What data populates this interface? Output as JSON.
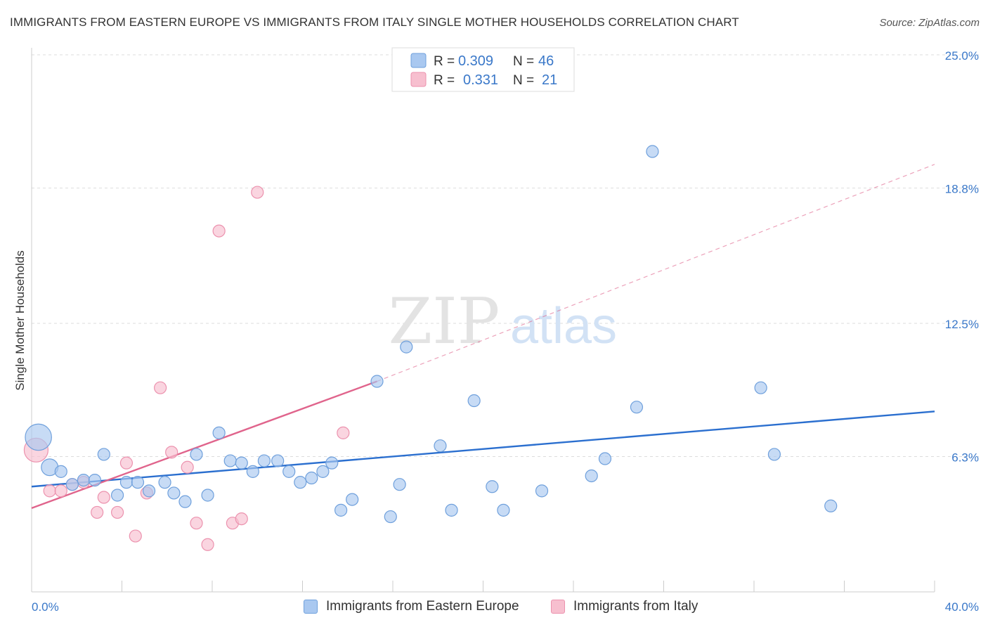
{
  "title": "IMMIGRANTS FROM EASTERN EUROPE VS IMMIGRANTS FROM ITALY SINGLE MOTHER HOUSEHOLDS CORRELATION CHART",
  "source": "Source: ZipAtlas.com",
  "watermark": {
    "zip": "ZIP",
    "atlas": "atlas"
  },
  "colors": {
    "blue_fill": "#a9c8f0",
    "blue_stroke": "#6fa0dc",
    "blue_line": "#2b6fcf",
    "pink_fill": "#f7bfcf",
    "pink_stroke": "#ec92ae",
    "pink_line": "#e0648c",
    "tick_text": "#3a78c9",
    "grid": "#dddddd"
  },
  "legend_top": [
    {
      "r_label": "R =",
      "r_value": "0.309",
      "n_label": "N =",
      "n_value": "46"
    },
    {
      "r_label": "R =",
      "r_value": "0.331",
      "n_label": "N =",
      "n_value": "21"
    }
  ],
  "chart_data": {
    "type": "scatter",
    "title": "IMMIGRANTS FROM EASTERN EUROPE VS IMMIGRANTS FROM ITALY SINGLE MOTHER HOUSEHOLDS CORRELATION CHART",
    "xlabel": "",
    "ylabel": "Single Mother Households",
    "xlim": [
      0,
      40
    ],
    "ylim": [
      0,
      25
    ],
    "x_tick_labels": [
      "0.0%",
      "40.0%"
    ],
    "y_ticks": [
      6.3,
      12.5,
      18.8,
      25.0
    ],
    "y_tick_labels": [
      "6.3%",
      "12.5%",
      "18.8%",
      "25.0%"
    ],
    "grid": "horizontal dashed",
    "legend_position": "top-center",
    "series": [
      {
        "name": "Immigrants from Eastern Europe",
        "color": "#a9c8f0",
        "trend": {
          "x": [
            0,
            40
          ],
          "y": [
            4.9,
            8.4
          ],
          "style": "solid"
        },
        "points": [
          [
            0.3,
            7.2,
            2.2
          ],
          [
            0.8,
            5.8,
            1.4
          ],
          [
            1.3,
            5.6,
            1.0
          ],
          [
            1.8,
            5.0,
            1.0
          ],
          [
            2.3,
            5.2,
            1.0
          ],
          [
            2.8,
            5.2,
            1.0
          ],
          [
            3.2,
            6.4,
            1.0
          ],
          [
            3.8,
            4.5,
            1.0
          ],
          [
            4.2,
            5.1,
            1.0
          ],
          [
            4.7,
            5.1,
            1.0
          ],
          [
            5.2,
            4.7,
            1.0
          ],
          [
            5.9,
            5.1,
            1.0
          ],
          [
            6.3,
            4.6,
            1.0
          ],
          [
            6.8,
            4.2,
            1.0
          ],
          [
            7.3,
            6.4,
            1.0
          ],
          [
            7.8,
            4.5,
            1.0
          ],
          [
            8.3,
            7.4,
            1.0
          ],
          [
            8.8,
            6.1,
            1.0
          ],
          [
            9.3,
            6.0,
            1.0
          ],
          [
            9.8,
            5.6,
            1.0
          ],
          [
            10.3,
            6.1,
            1.0
          ],
          [
            10.9,
            6.1,
            1.0
          ],
          [
            11.4,
            5.6,
            1.0
          ],
          [
            11.9,
            5.1,
            1.0
          ],
          [
            12.4,
            5.3,
            1.0
          ],
          [
            12.9,
            5.6,
            1.0
          ],
          [
            13.3,
            6.0,
            1.0
          ],
          [
            13.7,
            3.8,
            1.0
          ],
          [
            14.2,
            4.3,
            1.0
          ],
          [
            15.3,
            9.8,
            1.0
          ],
          [
            15.9,
            3.5,
            1.0
          ],
          [
            16.3,
            5.0,
            1.0
          ],
          [
            16.6,
            11.4,
            1.0
          ],
          [
            18.1,
            6.8,
            1.0
          ],
          [
            18.6,
            3.8,
            1.0
          ],
          [
            19.6,
            8.9,
            1.0
          ],
          [
            20.4,
            4.9,
            1.0
          ],
          [
            20.9,
            3.8,
            1.0
          ],
          [
            22.6,
            4.7,
            1.0
          ],
          [
            24.8,
            5.4,
            1.0
          ],
          [
            25.4,
            6.2,
            1.0
          ],
          [
            26.8,
            8.6,
            1.0
          ],
          [
            27.5,
            20.5,
            1.0
          ],
          [
            32.3,
            9.5,
            1.0
          ],
          [
            32.9,
            6.4,
            1.0
          ],
          [
            35.4,
            4.0,
            1.0
          ]
        ]
      },
      {
        "name": "Immigrants from Italy",
        "color": "#f7bfcf",
        "trend": {
          "x": [
            0,
            15.3
          ],
          "y": [
            3.9,
            9.8
          ],
          "style": "solid",
          "extension": {
            "x": [
              15.3,
              40
            ],
            "y": [
              9.8,
              19.9
            ],
            "style": "dashed"
          }
        },
        "points": [
          [
            0.2,
            6.6,
            2.0
          ],
          [
            0.8,
            4.7,
            1.0
          ],
          [
            1.3,
            4.7,
            1.0
          ],
          [
            1.8,
            5.0,
            1.0
          ],
          [
            2.3,
            5.1,
            1.0
          ],
          [
            2.9,
            3.7,
            1.0
          ],
          [
            3.2,
            4.4,
            1.0
          ],
          [
            3.8,
            3.7,
            1.0
          ],
          [
            4.2,
            6.0,
            1.0
          ],
          [
            4.6,
            2.6,
            1.0
          ],
          [
            5.1,
            4.6,
            1.0
          ],
          [
            5.7,
            9.5,
            1.0
          ],
          [
            6.2,
            6.5,
            1.0
          ],
          [
            6.9,
            5.8,
            1.0
          ],
          [
            7.3,
            3.2,
            1.0
          ],
          [
            7.8,
            2.2,
            1.0
          ],
          [
            8.3,
            16.8,
            1.0
          ],
          [
            8.9,
            3.2,
            1.0
          ],
          [
            9.3,
            3.4,
            1.0
          ],
          [
            10.0,
            18.6,
            1.0
          ],
          [
            13.8,
            7.4,
            1.0
          ]
        ]
      }
    ]
  },
  "legend_bottom": [
    "Immigrants from Eastern Europe",
    "Immigrants from Italy"
  ]
}
